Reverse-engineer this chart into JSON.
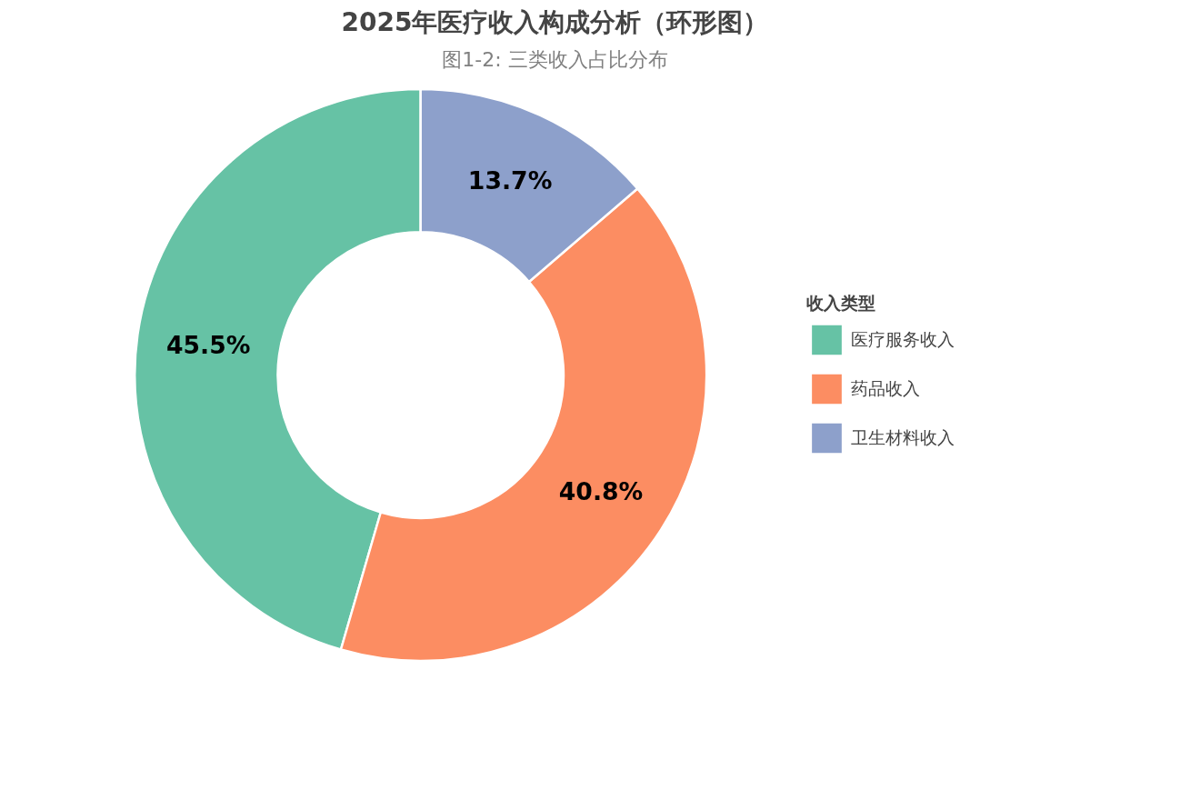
{
  "chart_data": {
    "type": "donut",
    "title": "2025年医疗收入构成分析（环形图）",
    "subtitle": "图1-2: 三类收入占比分布",
    "legend_title": "收入类型",
    "categories": [
      "医疗服务收入",
      "药品收入",
      "卫生材料收入"
    ],
    "values": [
      45.5,
      40.8,
      13.7
    ],
    "colors": [
      "#66c2a5",
      "#fc8d62",
      "#8da0cb"
    ],
    "value_labels": [
      "45.5%",
      "40.8%",
      "13.7%"
    ],
    "legend": "right"
  }
}
